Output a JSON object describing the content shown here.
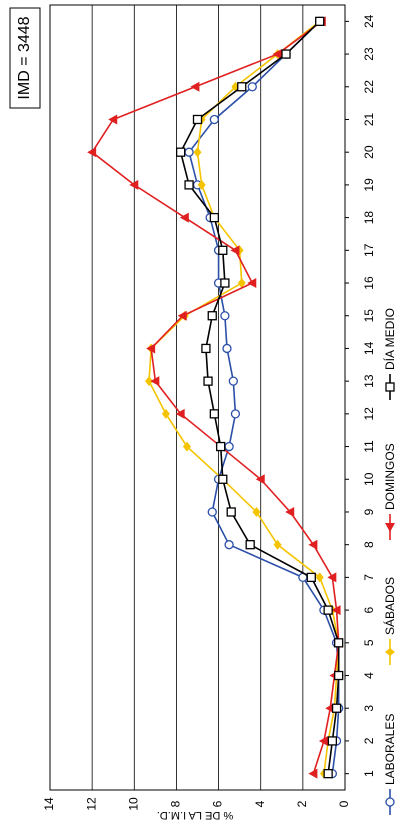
{
  "chart_data": {
    "type": "line",
    "annotation": "IMD = 3448",
    "y_label": "% DE LA I.M.D.",
    "x": [
      1,
      2,
      3,
      4,
      5,
      6,
      7,
      8,
      9,
      10,
      11,
      12,
      13,
      14,
      15,
      16,
      17,
      18,
      19,
      20,
      21,
      22,
      23,
      24
    ],
    "xlim": [
      0.5,
      24.5
    ],
    "xticks": [
      1,
      2,
      3,
      4,
      5,
      6,
      7,
      8,
      9,
      10,
      11,
      12,
      13,
      14,
      15,
      16,
      17,
      18,
      19,
      20,
      21,
      22,
      23,
      24
    ],
    "ylim": [
      0,
      14
    ],
    "yticks": [
      0,
      2,
      4,
      6,
      8,
      10,
      12,
      14
    ],
    "grid": true,
    "series": [
      {
        "name": "LABORALES",
        "color": "#2b4fa8",
        "marker": "circle",
        "values": [
          0.6,
          0.4,
          0.3,
          0.3,
          0.4,
          1.0,
          2.0,
          5.5,
          6.3,
          6.0,
          5.5,
          5.2,
          5.3,
          5.6,
          5.7,
          6.0,
          6.0,
          6.4,
          7.0,
          7.4,
          6.2,
          4.4,
          2.8,
          1.2
        ]
      },
      {
        "name": "SÁBADOS",
        "color": "#f5c400",
        "marker": "diamond",
        "values": [
          1.0,
          0.8,
          0.5,
          0.4,
          0.3,
          0.6,
          1.2,
          3.2,
          4.2,
          5.8,
          7.5,
          8.5,
          9.3,
          9.2,
          7.6,
          4.9,
          5.0,
          6.2,
          6.8,
          7.0,
          6.8,
          5.2,
          3.2,
          1.2
        ]
      },
      {
        "name": "DOMINGOS",
        "color": "#e02020",
        "marker": "triangle",
        "values": [
          1.5,
          1.0,
          0.7,
          0.5,
          0.3,
          0.4,
          0.6,
          1.5,
          2.6,
          4.0,
          5.9,
          7.8,
          9.0,
          9.2,
          7.7,
          4.4,
          5.2,
          7.6,
          10.0,
          12.0,
          11.0,
          7.1,
          3.2,
          1.1
        ]
      },
      {
        "name": "DÍA MEDIO",
        "color": "#000000",
        "marker": "square",
        "values": [
          0.8,
          0.6,
          0.4,
          0.3,
          0.3,
          0.8,
          1.6,
          4.5,
          5.4,
          5.8,
          5.9,
          6.2,
          6.5,
          6.6,
          6.3,
          5.7,
          5.8,
          6.2,
          7.4,
          7.8,
          7.0,
          4.9,
          2.8,
          1.2
        ]
      }
    ]
  }
}
